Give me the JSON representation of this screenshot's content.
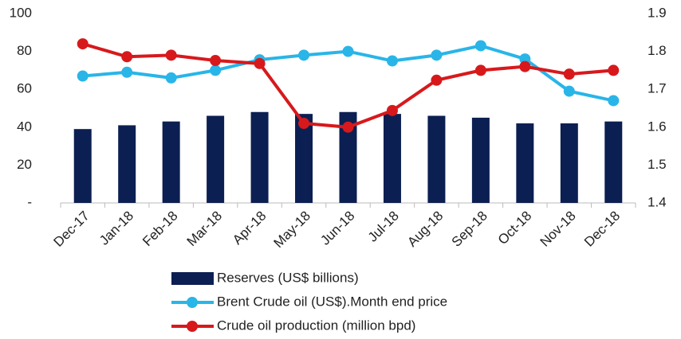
{
  "chart_data": {
    "type": "bar-line",
    "categories": [
      "Dec-17",
      "Jan-18",
      "Feb-18",
      "Mar-18",
      "Apr-18",
      "May-18",
      "Jun-18",
      "Jul-18",
      "Aug-18",
      "Sep-18",
      "Oct-18",
      "Nov-18",
      "Dec-18"
    ],
    "series": [
      {
        "name": "Reserves (US$ billions)",
        "kind": "bar",
        "color": "#0c1f52",
        "values": [
          39,
          41,
          43,
          46,
          48,
          47,
          48,
          47,
          46,
          45,
          42,
          42,
          43
        ]
      },
      {
        "name": "Brent Crude oil (US$).Month end price",
        "kind": "line",
        "color": "#29b5e8",
        "values": [
          67,
          69,
          66,
          70,
          75.6,
          78,
          80,
          75,
          78,
          83,
          76,
          59,
          54
        ]
      },
      {
        "name": "Crude oil production (million bpd)",
        "kind": "line",
        "axis": "y2",
        "color": "#d7191c",
        "values": [
          1.82,
          1.786,
          1.79,
          1.776,
          1.768,
          1.61,
          1.6,
          1.644,
          1.724,
          1.75,
          1.76,
          1.74,
          1.75
        ]
      }
    ],
    "ylim": [
      0,
      100
    ],
    "yticks": [
      {
        "value": 0,
        "label": "-"
      },
      20,
      40,
      60,
      80,
      100
    ],
    "y2lim": [
      1.4,
      1.9
    ],
    "y2ticks": [
      1.4,
      1.5,
      1.6,
      1.7,
      1.8,
      1.9
    ],
    "grid": false,
    "legend": "bottom"
  }
}
